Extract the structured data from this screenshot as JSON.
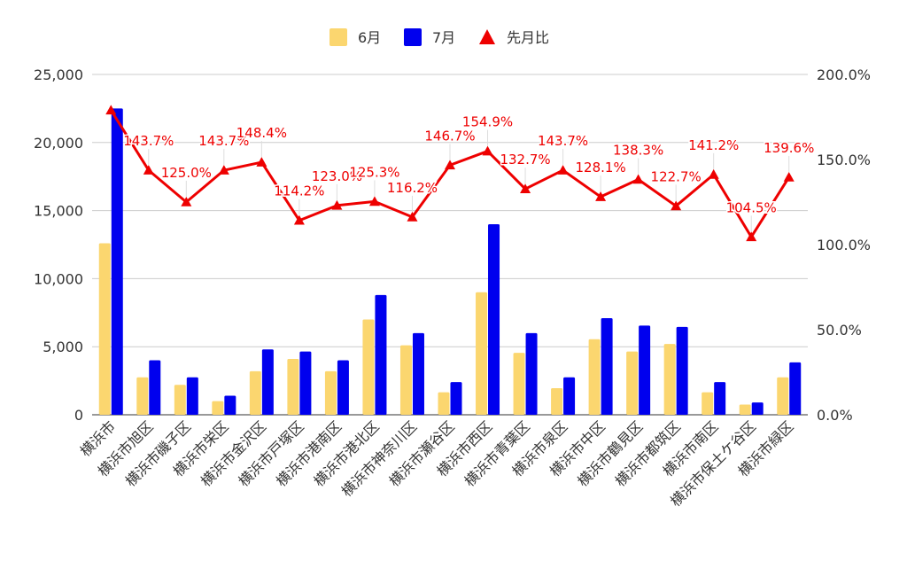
{
  "chart_data": {
    "type": "bar",
    "title": "",
    "xlabel": "",
    "ylabel": "",
    "categories": [
      "横浜市",
      "横浜市旭区",
      "横浜市磯子区",
      "横浜市栄区",
      "横浜市金沢区",
      "横浜市戸塚区",
      "横浜市港南区",
      "横浜市港北区",
      "横浜市神奈川区",
      "横浜市瀬谷区",
      "横浜市西区",
      "横浜市青葉区",
      "横浜市泉区",
      "横浜市中区",
      "横浜市鶴見区",
      "横浜市都筑区",
      "横浜市南区",
      "横浜市保土ケ谷区",
      "横浜市緑区"
    ],
    "series": [
      {
        "name": "6月",
        "type": "bar",
        "axis": "left",
        "color": "#fbd66f",
        "values": [
          12600,
          2750,
          2200,
          1000,
          3200,
          4100,
          3200,
          7000,
          5100,
          1650,
          9000,
          4550,
          1950,
          5550,
          4650,
          5200,
          1650,
          750,
          2750
        ]
      },
      {
        "name": "7月",
        "type": "bar",
        "axis": "left",
        "color": "#0000ee",
        "values": [
          22500,
          4000,
          2750,
          1400,
          4800,
          4650,
          4000,
          8800,
          6000,
          2400,
          14000,
          6000,
          2750,
          7100,
          6550,
          6450,
          2400,
          900,
          3850
        ]
      },
      {
        "name": "先月比",
        "type": "line",
        "axis": "right",
        "color": "#ee0000",
        "marker": "triangle",
        "values": [
          179.0,
          143.7,
          125.0,
          143.7,
          148.4,
          114.2,
          123.0,
          125.3,
          116.2,
          146.7,
          154.9,
          132.7,
          143.7,
          128.1,
          138.3,
          122.7,
          141.2,
          104.5,
          139.6
        ],
        "labels": [
          "",
          "143.7%",
          "125.0%",
          "143.7%",
          "148.4%",
          "114.2%",
          "123.0%",
          "125.3%",
          "116.2%",
          "146.7%",
          "154.9%",
          "132.7%",
          "143.7%",
          "128.1%",
          "138.3%",
          "122.7%",
          "141.2%",
          "104.5%",
          "139.6%"
        ]
      }
    ],
    "y_left": {
      "min": 0,
      "max": 25000,
      "ticks": [
        "0",
        "5,000",
        "10,000",
        "15,000",
        "20,000",
        "25,000"
      ]
    },
    "y_right": {
      "min": 0,
      "max": 200,
      "ticks": [
        "0.0%",
        "50.0%",
        "100.0%",
        "150.0%",
        "200.0%"
      ]
    },
    "grid": true,
    "legend": "top-center"
  }
}
